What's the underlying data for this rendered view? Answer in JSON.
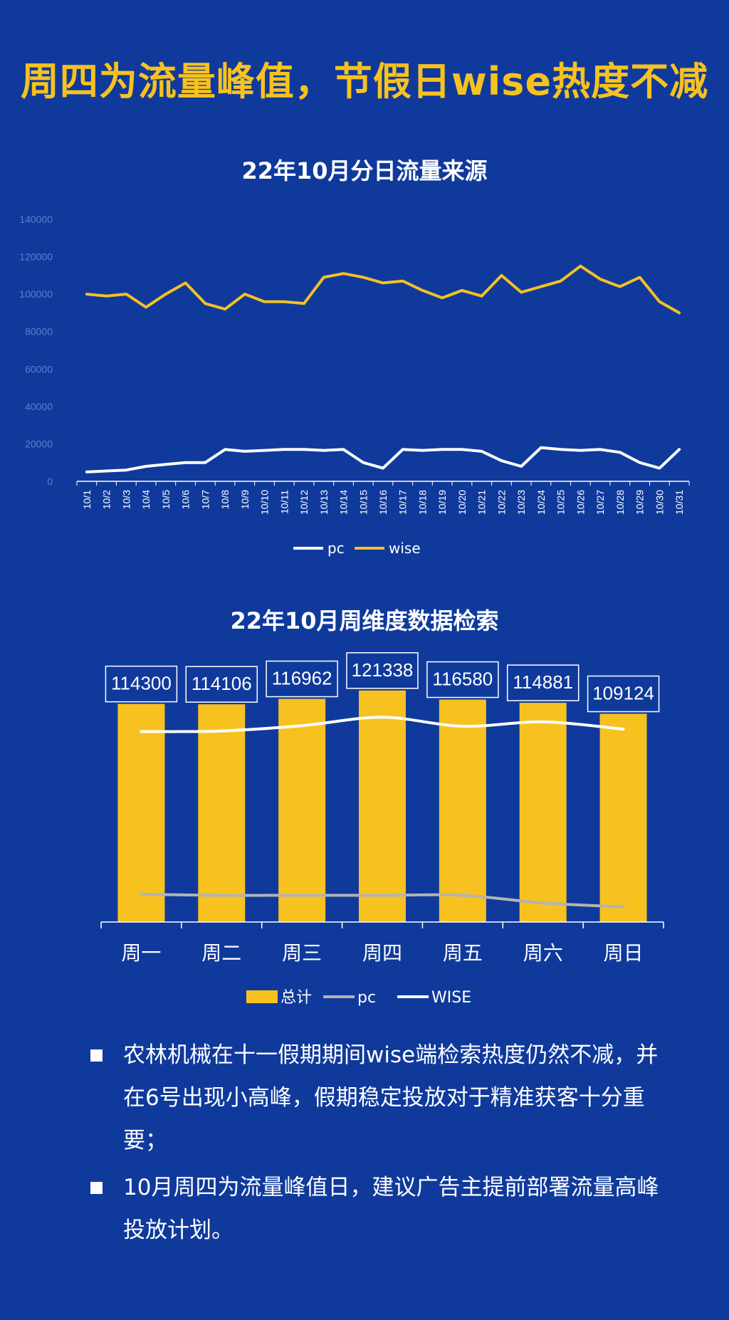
{
  "headline": "周四为流量峰值，节假日wise热度不减",
  "colors": {
    "background": "#0f3a9c",
    "accent": "#f7c21f",
    "pc_line_chart1": "#ffffff",
    "wise_line_chart1": "#f5c022",
    "bar": "#f7c21f",
    "pc_line_chart2": "#b3b3b3",
    "wise_line_chart2": "#ffffff"
  },
  "chart_data": [
    {
      "type": "line",
      "title": "22年10月分日流量来源",
      "x": [
        "10/1",
        "10/2",
        "10/3",
        "10/4",
        "10/5",
        "10/6",
        "10/7",
        "10/8",
        "10/9",
        "10/10",
        "10/11",
        "10/12",
        "10/13",
        "10/14",
        "10/15",
        "10/16",
        "10/17",
        "10/18",
        "10/19",
        "10/20",
        "10/21",
        "10/22",
        "10/23",
        "10/24",
        "10/25",
        "10/26",
        "10/27",
        "10/28",
        "10/29",
        "10/30",
        "10/31"
      ],
      "ylim": [
        0,
        140000
      ],
      "yticks": [
        0,
        20000,
        40000,
        60000,
        80000,
        100000,
        120000,
        140000
      ],
      "grid": false,
      "legend": "bottom",
      "series": [
        {
          "name": "pc",
          "color": "#ffffff",
          "values": [
            5000,
            5500,
            6000,
            8000,
            9000,
            10000,
            10000,
            17000,
            16000,
            16500,
            17000,
            17000,
            16500,
            17000,
            10000,
            7000,
            17000,
            16500,
            17000,
            17000,
            16000,
            11000,
            8000,
            18000,
            17000,
            16500,
            17000,
            15500,
            10000,
            7000,
            17000
          ]
        },
        {
          "name": "wise",
          "color": "#f5c022",
          "values": [
            100000,
            99000,
            100000,
            93000,
            100000,
            106000,
            95000,
            92000,
            100000,
            96000,
            96000,
            95000,
            109000,
            111000,
            109000,
            106000,
            107000,
            102000,
            98000,
            102000,
            99000,
            110000,
            101000,
            104000,
            107000,
            115000,
            108000,
            104000,
            109000,
            96000,
            90000
          ]
        }
      ]
    },
    {
      "type": "bar",
      "title": "22年10月周维度数据检索",
      "categories": [
        "周一",
        "周二",
        "周三",
        "周四",
        "周五",
        "周六",
        "周日"
      ],
      "legend": "bottom",
      "ylim": [
        0,
        125000
      ],
      "series": [
        {
          "name": "总计",
          "kind": "bar",
          "color": "#f7c21f",
          "values": [
            114300,
            114106,
            116962,
            121338,
            116580,
            114881,
            109124
          ]
        },
        {
          "name": "pc",
          "kind": "line",
          "color": "#b3b3b3",
          "values": [
            14500,
            14000,
            14000,
            14000,
            14000,
            10000,
            8000
          ]
        },
        {
          "name": "WISE",
          "kind": "line",
          "color": "#ffffff",
          "values": [
            99800,
            100100,
            102900,
            107300,
            102600,
            104900,
            101100
          ]
        }
      ]
    }
  ],
  "notes": [
    "农林机械在十一假期期间wise端检索热度仍然不减，并在6号出现小高峰，假期稳定投放对于精准获客十分重要；",
    "10月周四为流量峰值日，建议广告主提前部署流量高峰投放计划。"
  ]
}
